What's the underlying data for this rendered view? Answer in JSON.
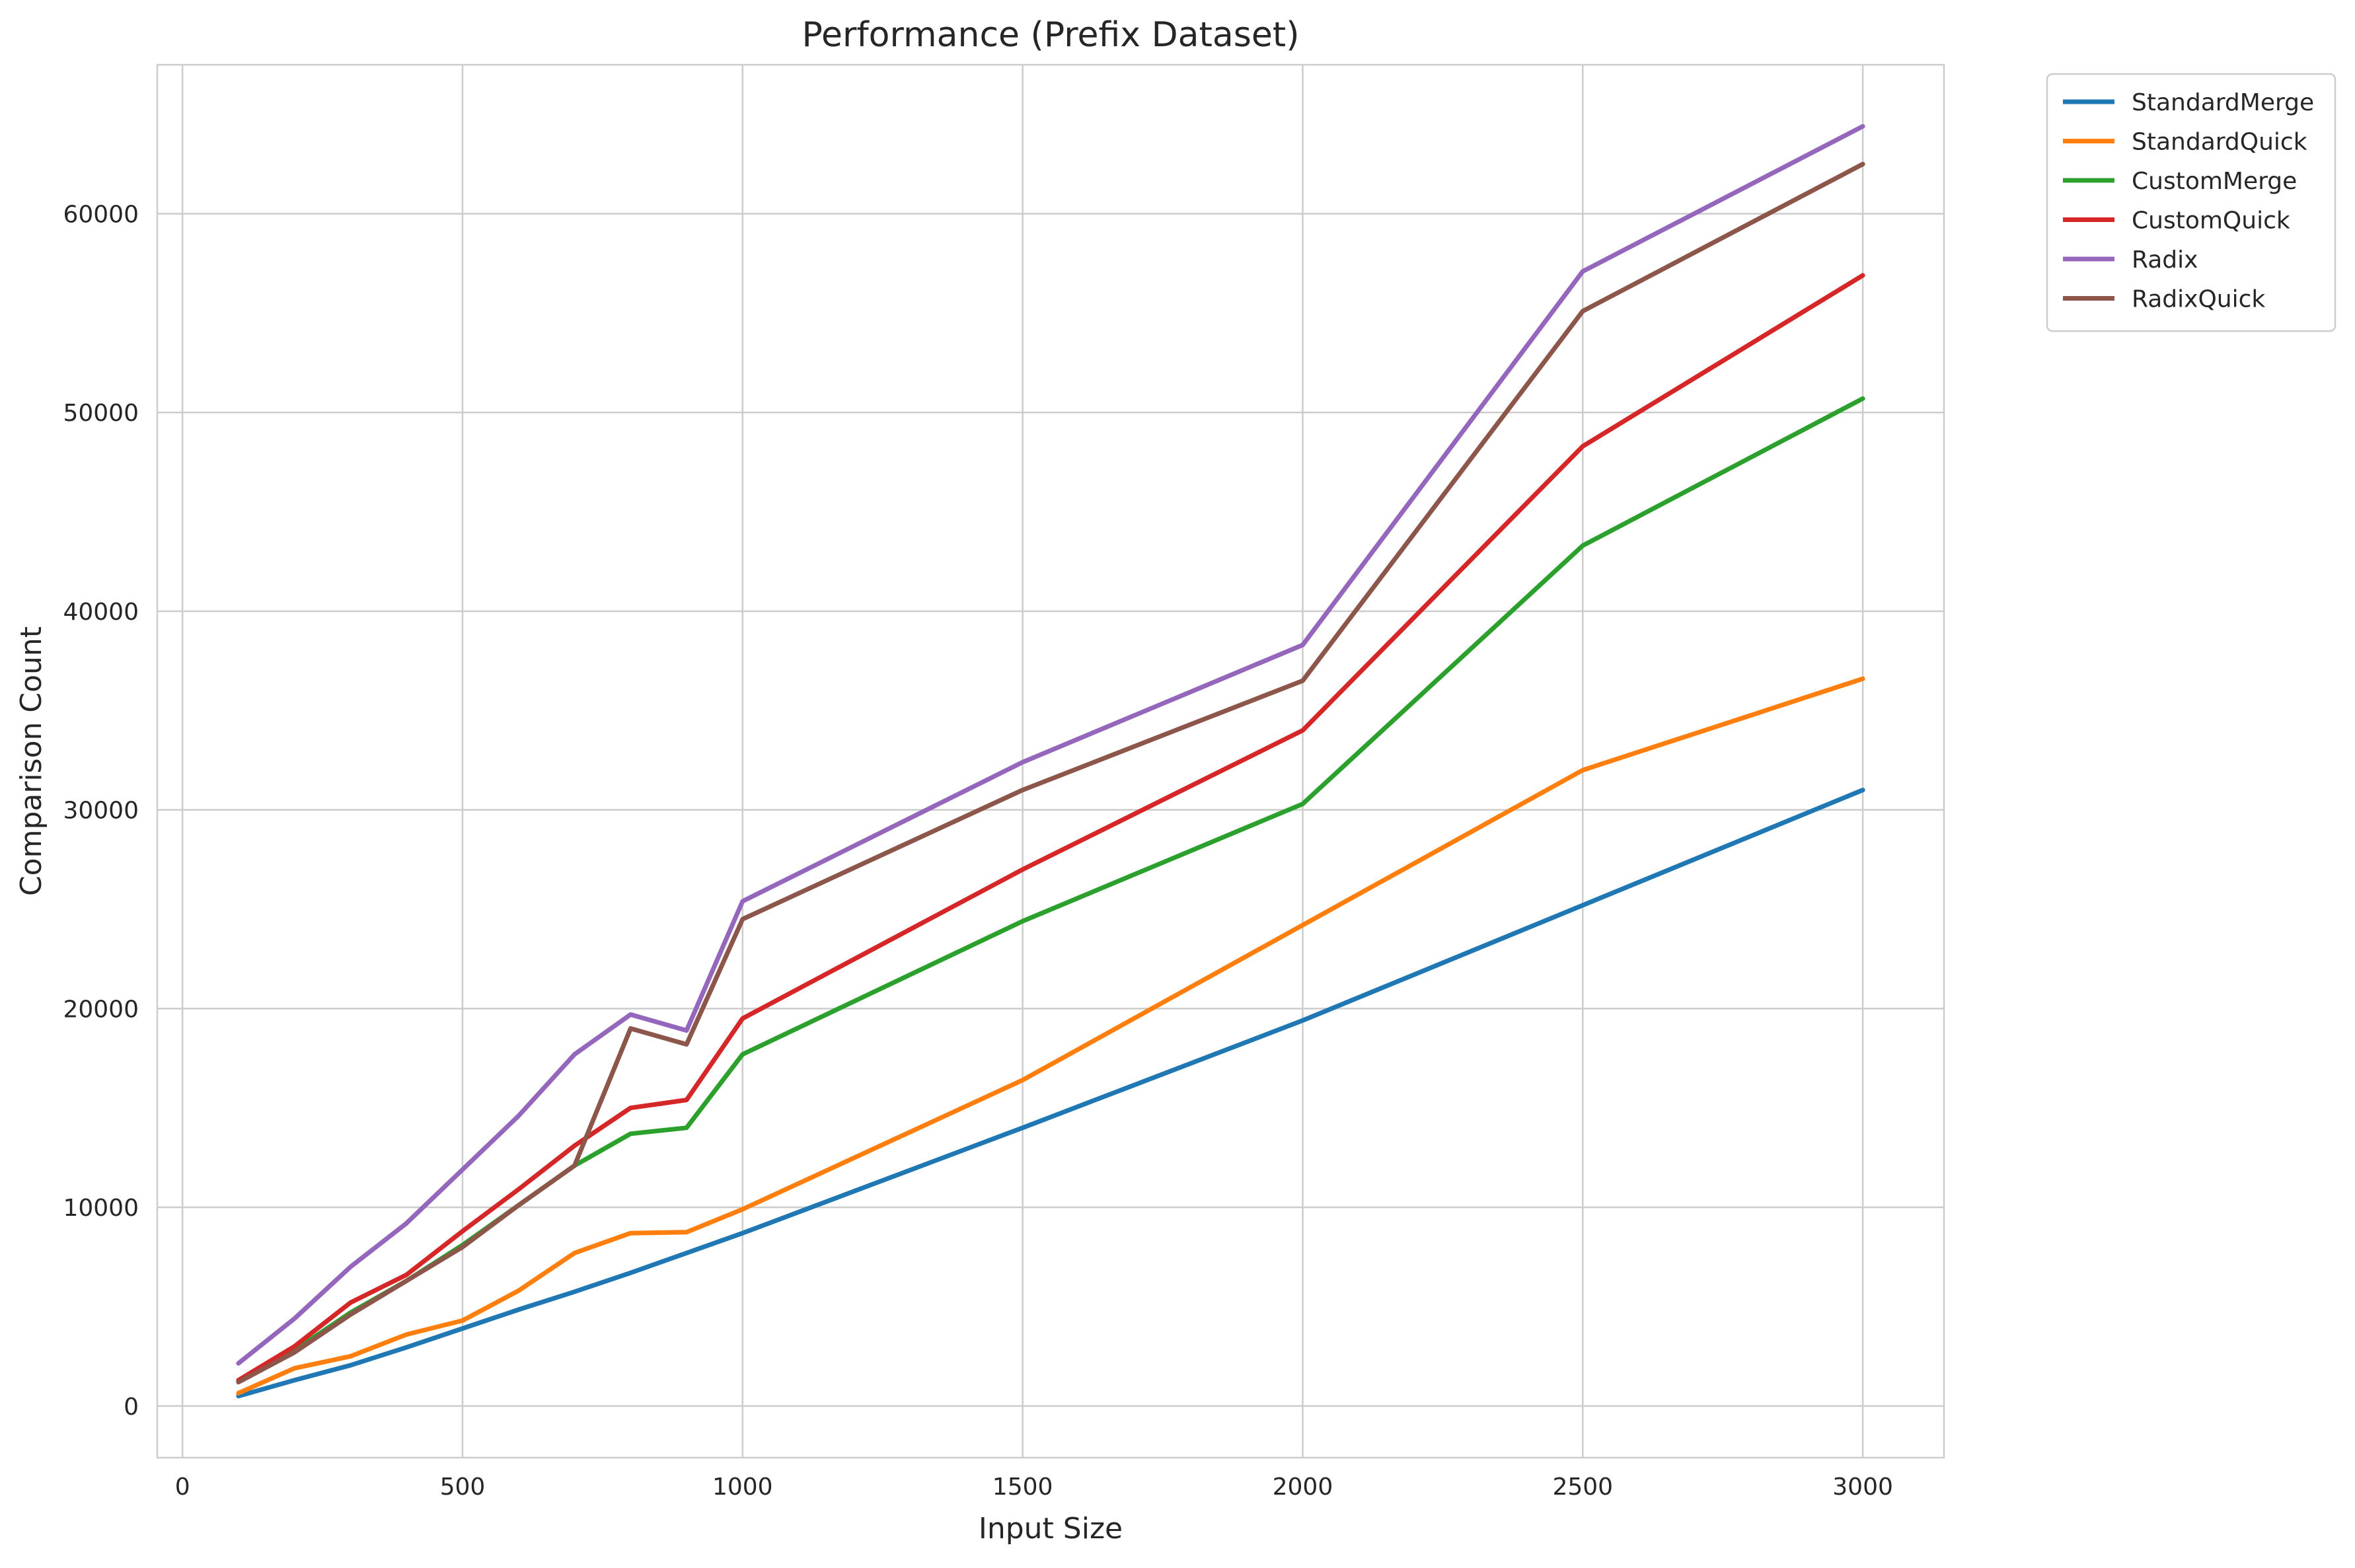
{
  "chart_data": {
    "type": "line",
    "title": "Performance (Prefix Dataset)",
    "xlabel": "Input Size",
    "ylabel": "Comparison Count",
    "xlim": [
      -45,
      3145
    ],
    "ylim": [
      -2600,
      67500
    ],
    "x_ticks": [
      0,
      500,
      1000,
      1500,
      2000,
      2500,
      3000
    ],
    "y_ticks": [
      0,
      10000,
      20000,
      30000,
      40000,
      50000,
      60000
    ],
    "grid": true,
    "legend_position": "outside-top-right",
    "x": [
      100,
      200,
      300,
      400,
      500,
      600,
      700,
      800,
      900,
      1000,
      1500,
      2000,
      2500,
      3000
    ],
    "series": [
      {
        "name": "StandardMerge",
        "color": "#1f77b4",
        "values": [
          500,
          1300,
          2050,
          2950,
          3900,
          4850,
          5750,
          6700,
          7700,
          8700,
          14000,
          19400,
          25200,
          31000
        ]
      },
      {
        "name": "StandardQuick",
        "color": "#ff7f0e",
        "values": [
          650,
          1900,
          2500,
          3600,
          4300,
          5800,
          7700,
          8700,
          8750,
          9900,
          16400,
          24200,
          32000,
          36600
        ]
      },
      {
        "name": "CustomMerge",
        "color": "#2ca02c",
        "values": [
          1250,
          2800,
          4700,
          6300,
          8100,
          10100,
          12100,
          13700,
          14000,
          17700,
          24400,
          30300,
          43300,
          50700
        ]
      },
      {
        "name": "CustomQuick",
        "color": "#d62728",
        "values": [
          1300,
          3000,
          5200,
          6600,
          8800,
          10900,
          13100,
          15000,
          15400,
          19500,
          27000,
          34000,
          48300,
          56900
        ]
      },
      {
        "name": "Radix",
        "color": "#9467bd",
        "values": [
          2150,
          4400,
          7000,
          9200,
          11900,
          14600,
          17700,
          19700,
          18900,
          25400,
          32400,
          38300,
          57100,
          64400
        ]
      },
      {
        "name": "RadixQuick",
        "color": "#8c564b",
        "values": [
          1200,
          2700,
          4600,
          6300,
          8000,
          10100,
          12100,
          19000,
          18200,
          24500,
          31000,
          36500,
          55100,
          62500
        ]
      }
    ]
  }
}
